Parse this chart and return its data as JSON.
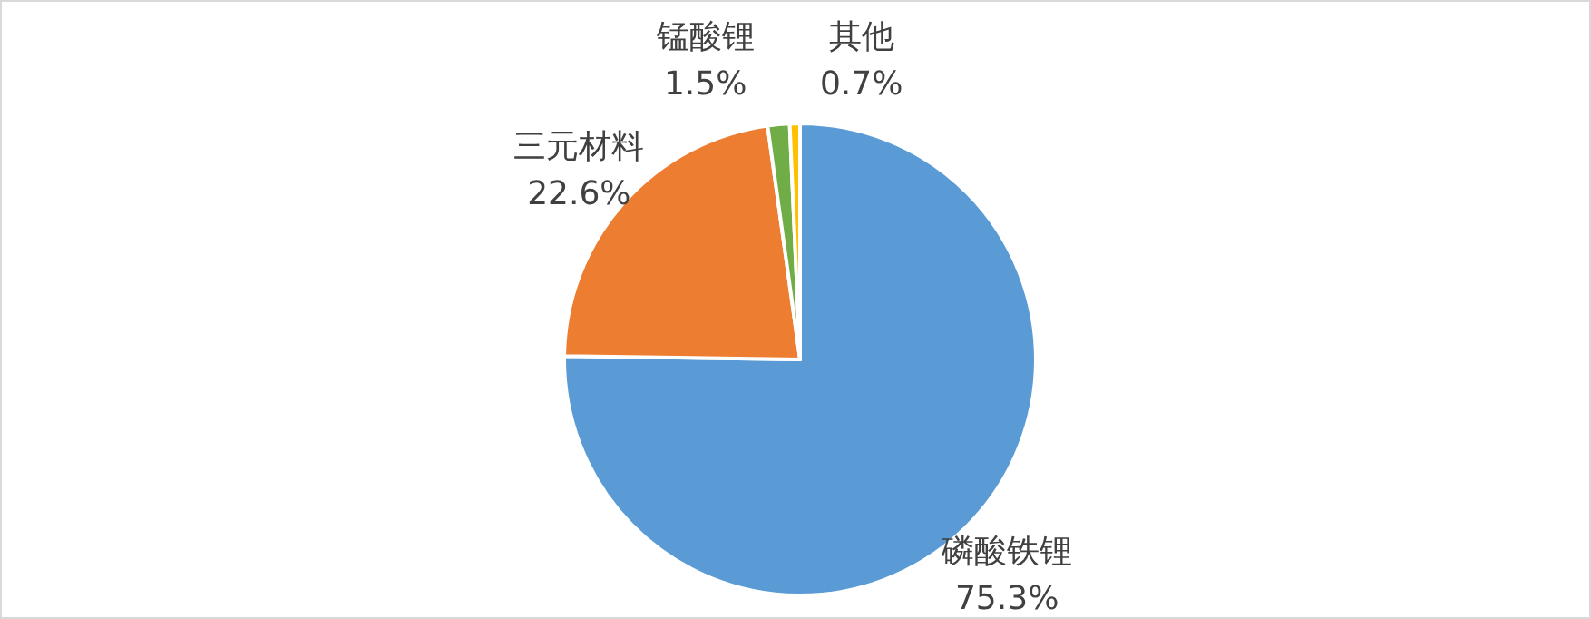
{
  "chart_data": {
    "type": "pie",
    "categories": [
      "磷酸铁锂",
      "三元材料",
      "锰酸锂",
      "其他"
    ],
    "values": [
      75.3,
      22.6,
      1.5,
      0.7
    ],
    "colors": [
      "#5b9bd5",
      "#ed7d31",
      "#70ad47",
      "#ffc000"
    ],
    "value_labels": [
      "75.3%",
      "22.6%",
      "1.5%",
      "0.7%"
    ]
  }
}
